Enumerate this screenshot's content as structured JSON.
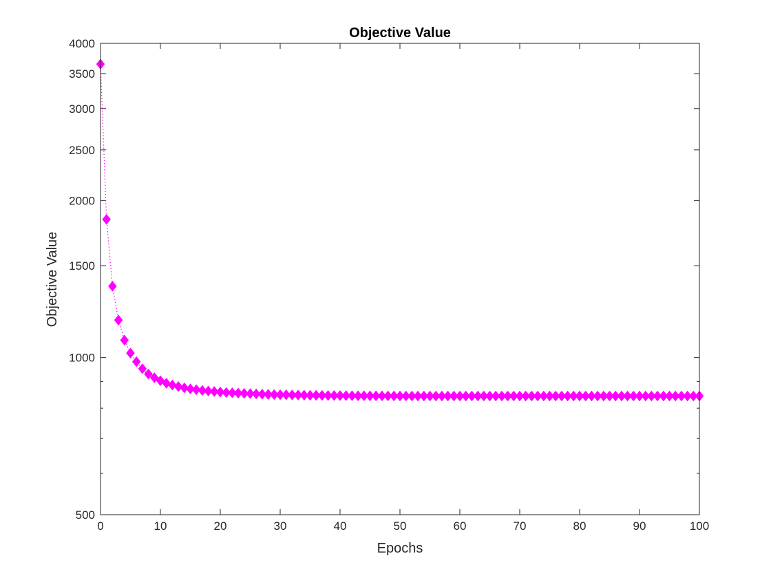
{
  "chart_data": {
    "type": "line",
    "title": "Objective Value",
    "xlabel": "Epochs",
    "ylabel": "Objective Value",
    "xlim": [
      0,
      100
    ],
    "ylim": [
      500,
      4000
    ],
    "yscale": "log",
    "xticks": [
      0,
      10,
      20,
      30,
      40,
      50,
      60,
      70,
      80,
      90,
      100
    ],
    "yticks": [
      500,
      1000,
      1500,
      2000,
      2500,
      3000,
      3500,
      4000
    ],
    "ytick_labels": [
      "500",
      "1000",
      "1500",
      "2000",
      "2500",
      "3000",
      "3500",
      "4000"
    ],
    "grid": false,
    "series": [
      {
        "name": "Objective Value",
        "color": "#ff00ff",
        "marker": "diamond",
        "linestyle": "dotted",
        "x": [
          0,
          1,
          2,
          3,
          4,
          5,
          6,
          7,
          8,
          9,
          10,
          11,
          12,
          13,
          14,
          15,
          16,
          17,
          18,
          19,
          20,
          21,
          22,
          23,
          24,
          25,
          26,
          27,
          28,
          29,
          30,
          31,
          32,
          33,
          34,
          35,
          36,
          37,
          38,
          39,
          40,
          41,
          42,
          43,
          44,
          45,
          46,
          47,
          48,
          49,
          50,
          51,
          52,
          53,
          54,
          55,
          56,
          57,
          58,
          59,
          60,
          61,
          62,
          63,
          64,
          65,
          66,
          67,
          68,
          69,
          70,
          71,
          72,
          73,
          74,
          75,
          76,
          77,
          78,
          79,
          80,
          81,
          82,
          83,
          84,
          85,
          86,
          87,
          88,
          89,
          90,
          91,
          92,
          93,
          94,
          95,
          96,
          97,
          98,
          99,
          100
        ],
        "values": [
          3650,
          1840,
          1370,
          1180,
          1080,
          1020,
          982,
          952,
          930,
          915,
          903,
          893,
          886,
          880,
          875,
          871,
          868,
          865,
          863,
          861,
          859,
          857,
          856,
          855,
          854,
          853,
          852,
          851,
          850,
          849.5,
          849,
          848.5,
          848,
          847.6,
          847.2,
          846.8,
          846.5,
          846.2,
          846,
          845.8,
          845.6,
          845.4,
          845.2,
          845,
          844.8,
          844.7,
          844.6,
          844.5,
          844.4,
          844.3,
          844.2,
          844.1,
          844,
          844,
          844,
          844,
          844,
          844,
          844,
          844,
          844,
          844,
          844,
          844,
          844,
          844,
          844,
          844,
          844,
          844,
          844,
          844,
          844,
          844,
          844,
          844,
          844,
          844,
          844,
          844,
          844,
          844,
          844,
          844,
          844,
          844,
          844,
          844,
          844,
          844,
          844,
          844,
          844,
          844,
          844,
          844,
          844,
          844,
          844,
          844,
          844
        ]
      }
    ]
  }
}
